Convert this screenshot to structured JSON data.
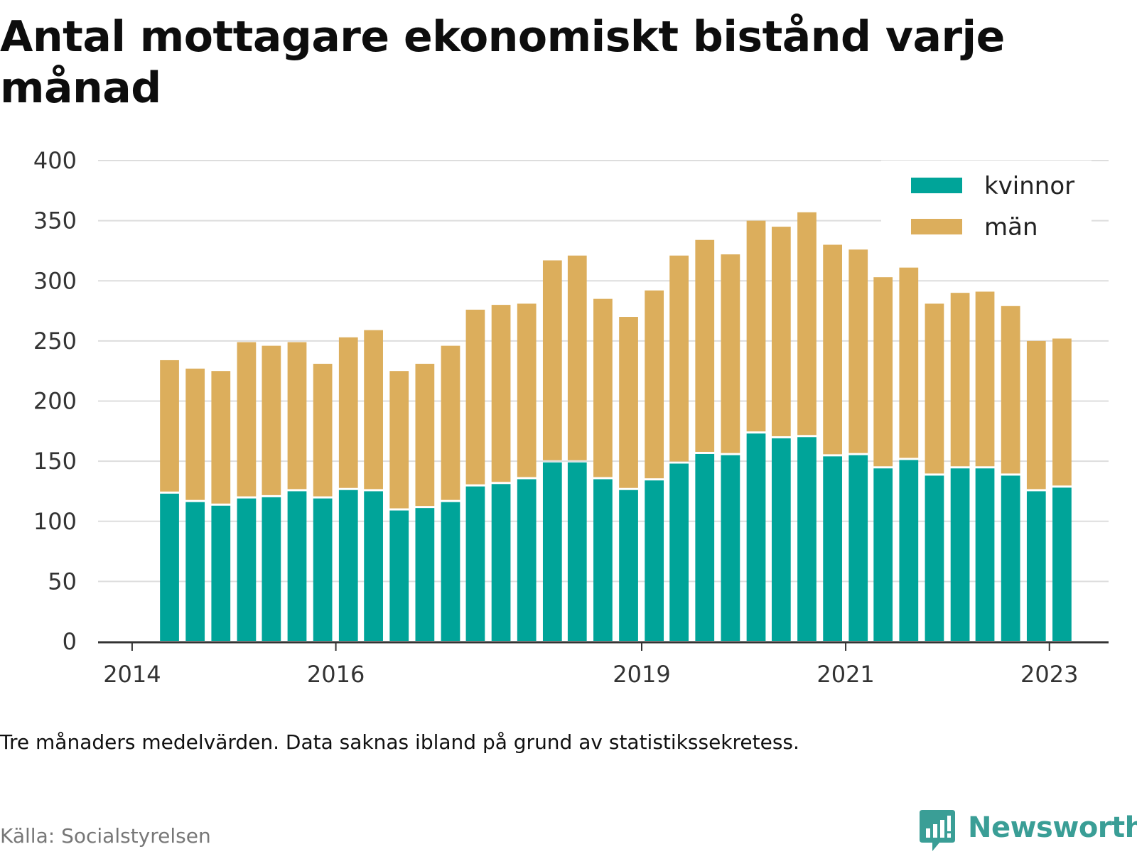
{
  "title": "Antal mottagare ekonomiskt bistånd varje månad",
  "note": "Tre månaders medelvärden. Data saknas ibland på grund av statistikssekretess.",
  "source": "Källa: Socialstyrelsen",
  "brand": "Newsworthy",
  "colors": {
    "kvinnor": "#00a499",
    "man": "#dcae5c",
    "grid": "#dddddd",
    "axis": "#333333",
    "brand": "#3a9e96"
  },
  "chart_data": {
    "type": "bar",
    "stacked": true,
    "title": "Antal mottagare ekonomiskt bistånd varje månad",
    "ylim": [
      0,
      400
    ],
    "yticks": [
      0,
      50,
      100,
      150,
      200,
      250,
      300,
      350,
      400
    ],
    "xlim": [
      "2013-09-01",
      "2023-08-01"
    ],
    "xticks": [
      {
        "label": "2014",
        "date": "2014-01-01"
      },
      {
        "label": "2016",
        "date": "2016-01-01"
      },
      {
        "label": "2019",
        "date": "2019-01-01"
      },
      {
        "label": "2021",
        "date": "2021-01-01"
      },
      {
        "label": "2023",
        "date": "2023-01-01"
      }
    ],
    "grid": true,
    "legend_position": "top-right",
    "x": [
      "2014-05",
      "2014-08",
      "2014-11",
      "2015-02",
      "2015-05",
      "2015-08",
      "2015-11",
      "2016-02",
      "2016-05",
      "2016-08",
      "2016-11",
      "2017-02",
      "2017-05",
      "2017-08",
      "2017-11",
      "2018-02",
      "2018-05",
      "2018-08",
      "2018-11",
      "2019-02",
      "2019-05",
      "2019-08",
      "2019-11",
      "2020-02",
      "2020-05",
      "2020-08",
      "2020-11",
      "2021-02",
      "2021-05",
      "2021-08",
      "2021-11",
      "2022-02",
      "2022-05",
      "2022-08",
      "2022-11",
      "2023-02"
    ],
    "series": [
      {
        "name": "kvinnor",
        "values": [
          123,
          116,
          113,
          119,
          120,
          125,
          119,
          126,
          125,
          109,
          111,
          116,
          129,
          131,
          135,
          149,
          149,
          135,
          126,
          134,
          148,
          156,
          155,
          173,
          169,
          170,
          154,
          155,
          144,
          151,
          138,
          144,
          144,
          138,
          125,
          128
        ]
      },
      {
        "name": "män",
        "values": [
          111,
          111,
          112,
          130,
          126,
          124,
          112,
          127,
          134,
          116,
          120,
          130,
          147,
          149,
          146,
          168,
          172,
          150,
          144,
          158,
          173,
          178,
          167,
          177,
          176,
          187,
          176,
          171,
          159,
          160,
          143,
          146,
          147,
          141,
          125,
          124
        ]
      }
    ]
  }
}
